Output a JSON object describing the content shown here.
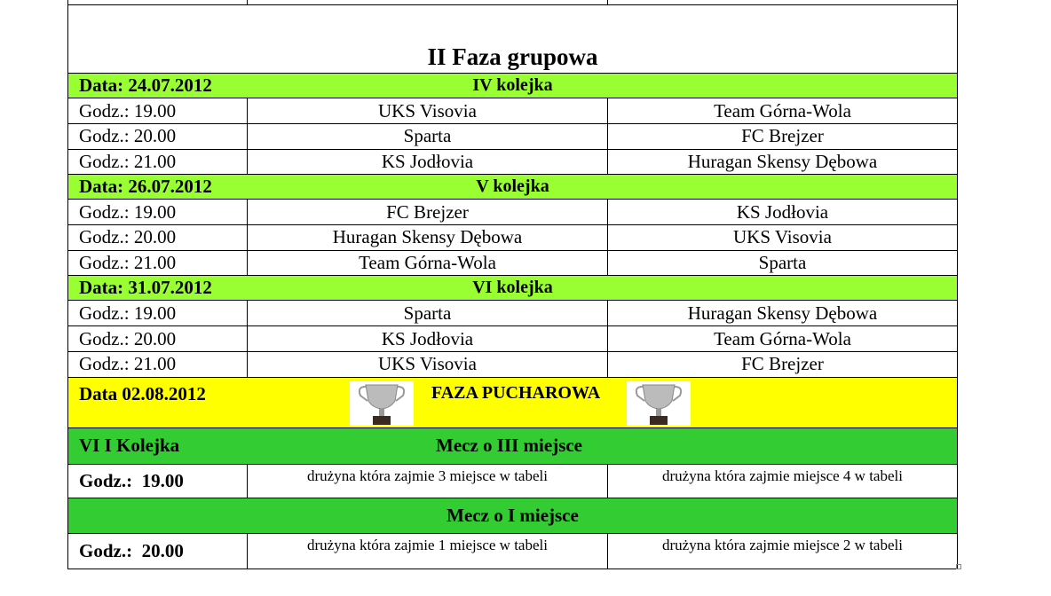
{
  "title": "II Faza grupowa",
  "rounds": [
    {
      "date": "Data: 24.07.2012",
      "name": "IV kolejka",
      "matches": [
        {
          "time": "Godz.: 19.00",
          "home": "UKS Visovia",
          "away": "Team Górna-Wola"
        },
        {
          "time": "Godz.: 20.00",
          "home": "Sparta",
          "away": "FC Brejzer"
        },
        {
          "time": "Godz.: 21.00",
          "home": "KS Jodłovia",
          "away": "Huragan Skensy Dębowa"
        }
      ]
    },
    {
      "date": "Data: 26.07.2012",
      "name": "V kolejka",
      "matches": [
        {
          "time": "Godz.: 19.00",
          "home": "FC Brejzer",
          "away": "KS Jodłovia"
        },
        {
          "time": "Godz.: 20.00",
          "home": "Huragan Skensy Dębowa",
          "away": "UKS Visovia"
        },
        {
          "time": "Godz.: 21.00",
          "home": "Team Górna-Wola",
          "away": "Sparta"
        }
      ]
    },
    {
      "date": "Data: 31.07.2012",
      "name": "VI kolejka",
      "matches": [
        {
          "time": "Godz.: 19.00",
          "home": "Sparta",
          "away": "Huragan Skensy Dębowa"
        },
        {
          "time": "Godz.: 20.00",
          "home": "KS Jodłovia",
          "away": "Team Górna-Wola"
        },
        {
          "time": "Godz.: 21.00",
          "home": "UKS Visovia",
          "away": "FC Brejzer"
        }
      ]
    }
  ],
  "cup": {
    "date": "Data  02.08.2012",
    "title": "FAZA PUCHAROWA",
    "round": "VI I Kolejka",
    "third": {
      "title": "Mecz o III miejsce",
      "time": "Godz.:",
      "hour": "19.00",
      "home": "drużyna która zajmie 3 miejsce w tabeli",
      "away": "drużyna która zajmie miejsce 4 w tabeli"
    },
    "first": {
      "title": "Mecz o I miejsce",
      "time": "Godz.:",
      "hour": "20.00",
      "home": "drużyna która zajmie 1 miejsce w  tabeli",
      "away": "drużyna która zajmie miejsce 2 w tabeli"
    }
  },
  "colors": {
    "round_header": "#99ff33",
    "cup_header": "#ffff00",
    "final_header": "#33cc33"
  }
}
